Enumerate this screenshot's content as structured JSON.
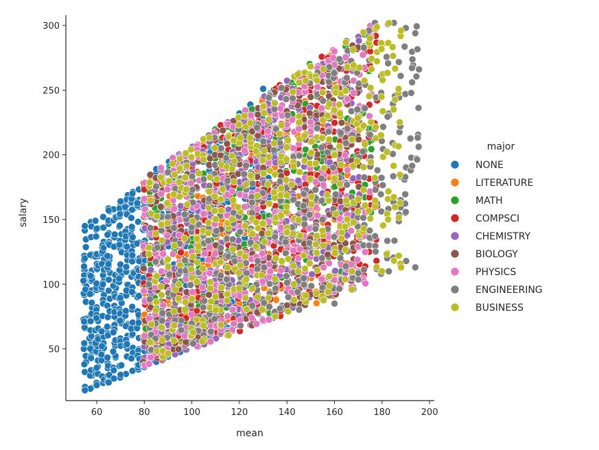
{
  "chart_data": {
    "type": "scatter",
    "title": "",
    "xlabel": "mean",
    "ylabel": "salary",
    "xlim": [
      47,
      202
    ],
    "ylim": [
      10,
      308
    ],
    "xticks": [
      60,
      80,
      100,
      120,
      140,
      160,
      180,
      200
    ],
    "yticks": [
      50,
      100,
      150,
      200,
      250,
      300
    ],
    "grid": false,
    "legend_position": "right",
    "legend_title": "major",
    "series": [
      {
        "name": "NONE",
        "color": "#1f77b4",
        "mean_range": [
          55,
          135
        ],
        "points": [
          [
            55,
            18
          ],
          [
            55,
            145
          ],
          [
            60,
            22
          ],
          [
            60,
            143
          ],
          [
            65,
            24
          ],
          [
            65,
            157
          ],
          [
            70,
            30
          ],
          [
            70,
            164
          ],
          [
            75,
            33
          ],
          [
            75,
            170
          ],
          [
            80,
            36
          ],
          [
            80,
            176
          ],
          [
            85,
            40
          ],
          [
            85,
            189
          ],
          [
            90,
            44
          ],
          [
            100,
            195
          ],
          [
            110,
            220
          ],
          [
            120,
            232
          ],
          [
            130,
            251
          ]
        ]
      },
      {
        "name": "LITERATURE",
        "color": "#ff7f0e",
        "mean_range": [
          78,
          165
        ],
        "points": [
          [
            85,
            55
          ],
          [
            100,
            90
          ],
          [
            120,
            85
          ],
          [
            130,
            110
          ],
          [
            140,
            95
          ],
          [
            155,
            170
          ],
          [
            160,
            150
          ]
        ]
      },
      {
        "name": "MATH",
        "color": "#2ca02c",
        "mean_range": [
          78,
          175
        ],
        "points": [
          [
            95,
            70
          ],
          [
            110,
            150
          ],
          [
            125,
            180
          ],
          [
            140,
            140
          ],
          [
            150,
            230
          ],
          [
            160,
            110
          ],
          [
            170,
            250
          ]
        ]
      },
      {
        "name": "COMPSCI",
        "color": "#d62728",
        "mean_range": [
          80,
          178
        ],
        "points": [
          [
            100,
            120
          ],
          [
            115,
            180
          ],
          [
            130,
            160
          ],
          [
            145,
            200
          ],
          [
            155,
            250
          ],
          [
            165,
            265
          ],
          [
            175,
            280
          ]
        ]
      },
      {
        "name": "CHEMISTRY",
        "color": "#9467bd",
        "mean_range": [
          78,
          172
        ],
        "points": [
          [
            90,
            110
          ],
          [
            105,
            160
          ],
          [
            120,
            200
          ],
          [
            135,
            150
          ],
          [
            150,
            210
          ],
          [
            165,
            240
          ]
        ]
      },
      {
        "name": "BIOLOGY",
        "color": "#8c564b",
        "mean_range": [
          78,
          172
        ],
        "points": [
          [
            85,
            45
          ],
          [
            95,
            80
          ],
          [
            110,
            130
          ],
          [
            130,
            190
          ],
          [
            150,
            170
          ],
          [
            170,
            200
          ]
        ]
      },
      {
        "name": "PHYSICS",
        "color": "#e377c2",
        "mean_range": [
          78,
          175
        ],
        "points": [
          [
            80,
            166
          ],
          [
            100,
            140
          ],
          [
            125,
            110
          ],
          [
            145,
            220
          ],
          [
            160,
            280
          ],
          [
            172,
            295
          ]
        ]
      },
      {
        "name": "ENGINEERING",
        "color": "#7f7f7f",
        "mean_range": [
          82,
          195
        ],
        "points": [
          [
            120,
            100
          ],
          [
            160,
            85
          ],
          [
            165,
            288
          ],
          [
            177,
            302
          ],
          [
            185,
            302
          ],
          [
            190,
            298
          ],
          [
            194,
            113
          ],
          [
            194,
            294
          ]
        ]
      },
      {
        "name": "BUSINESS",
        "color": "#bcbd22",
        "mean_range": [
          82,
          188
        ],
        "points": [
          [
            110,
            80
          ],
          [
            140,
            140
          ],
          [
            160,
            200
          ],
          [
            175,
            290
          ],
          [
            180,
            110
          ],
          [
            188,
            296
          ],
          [
            188,
            113
          ]
        ]
      }
    ]
  }
}
